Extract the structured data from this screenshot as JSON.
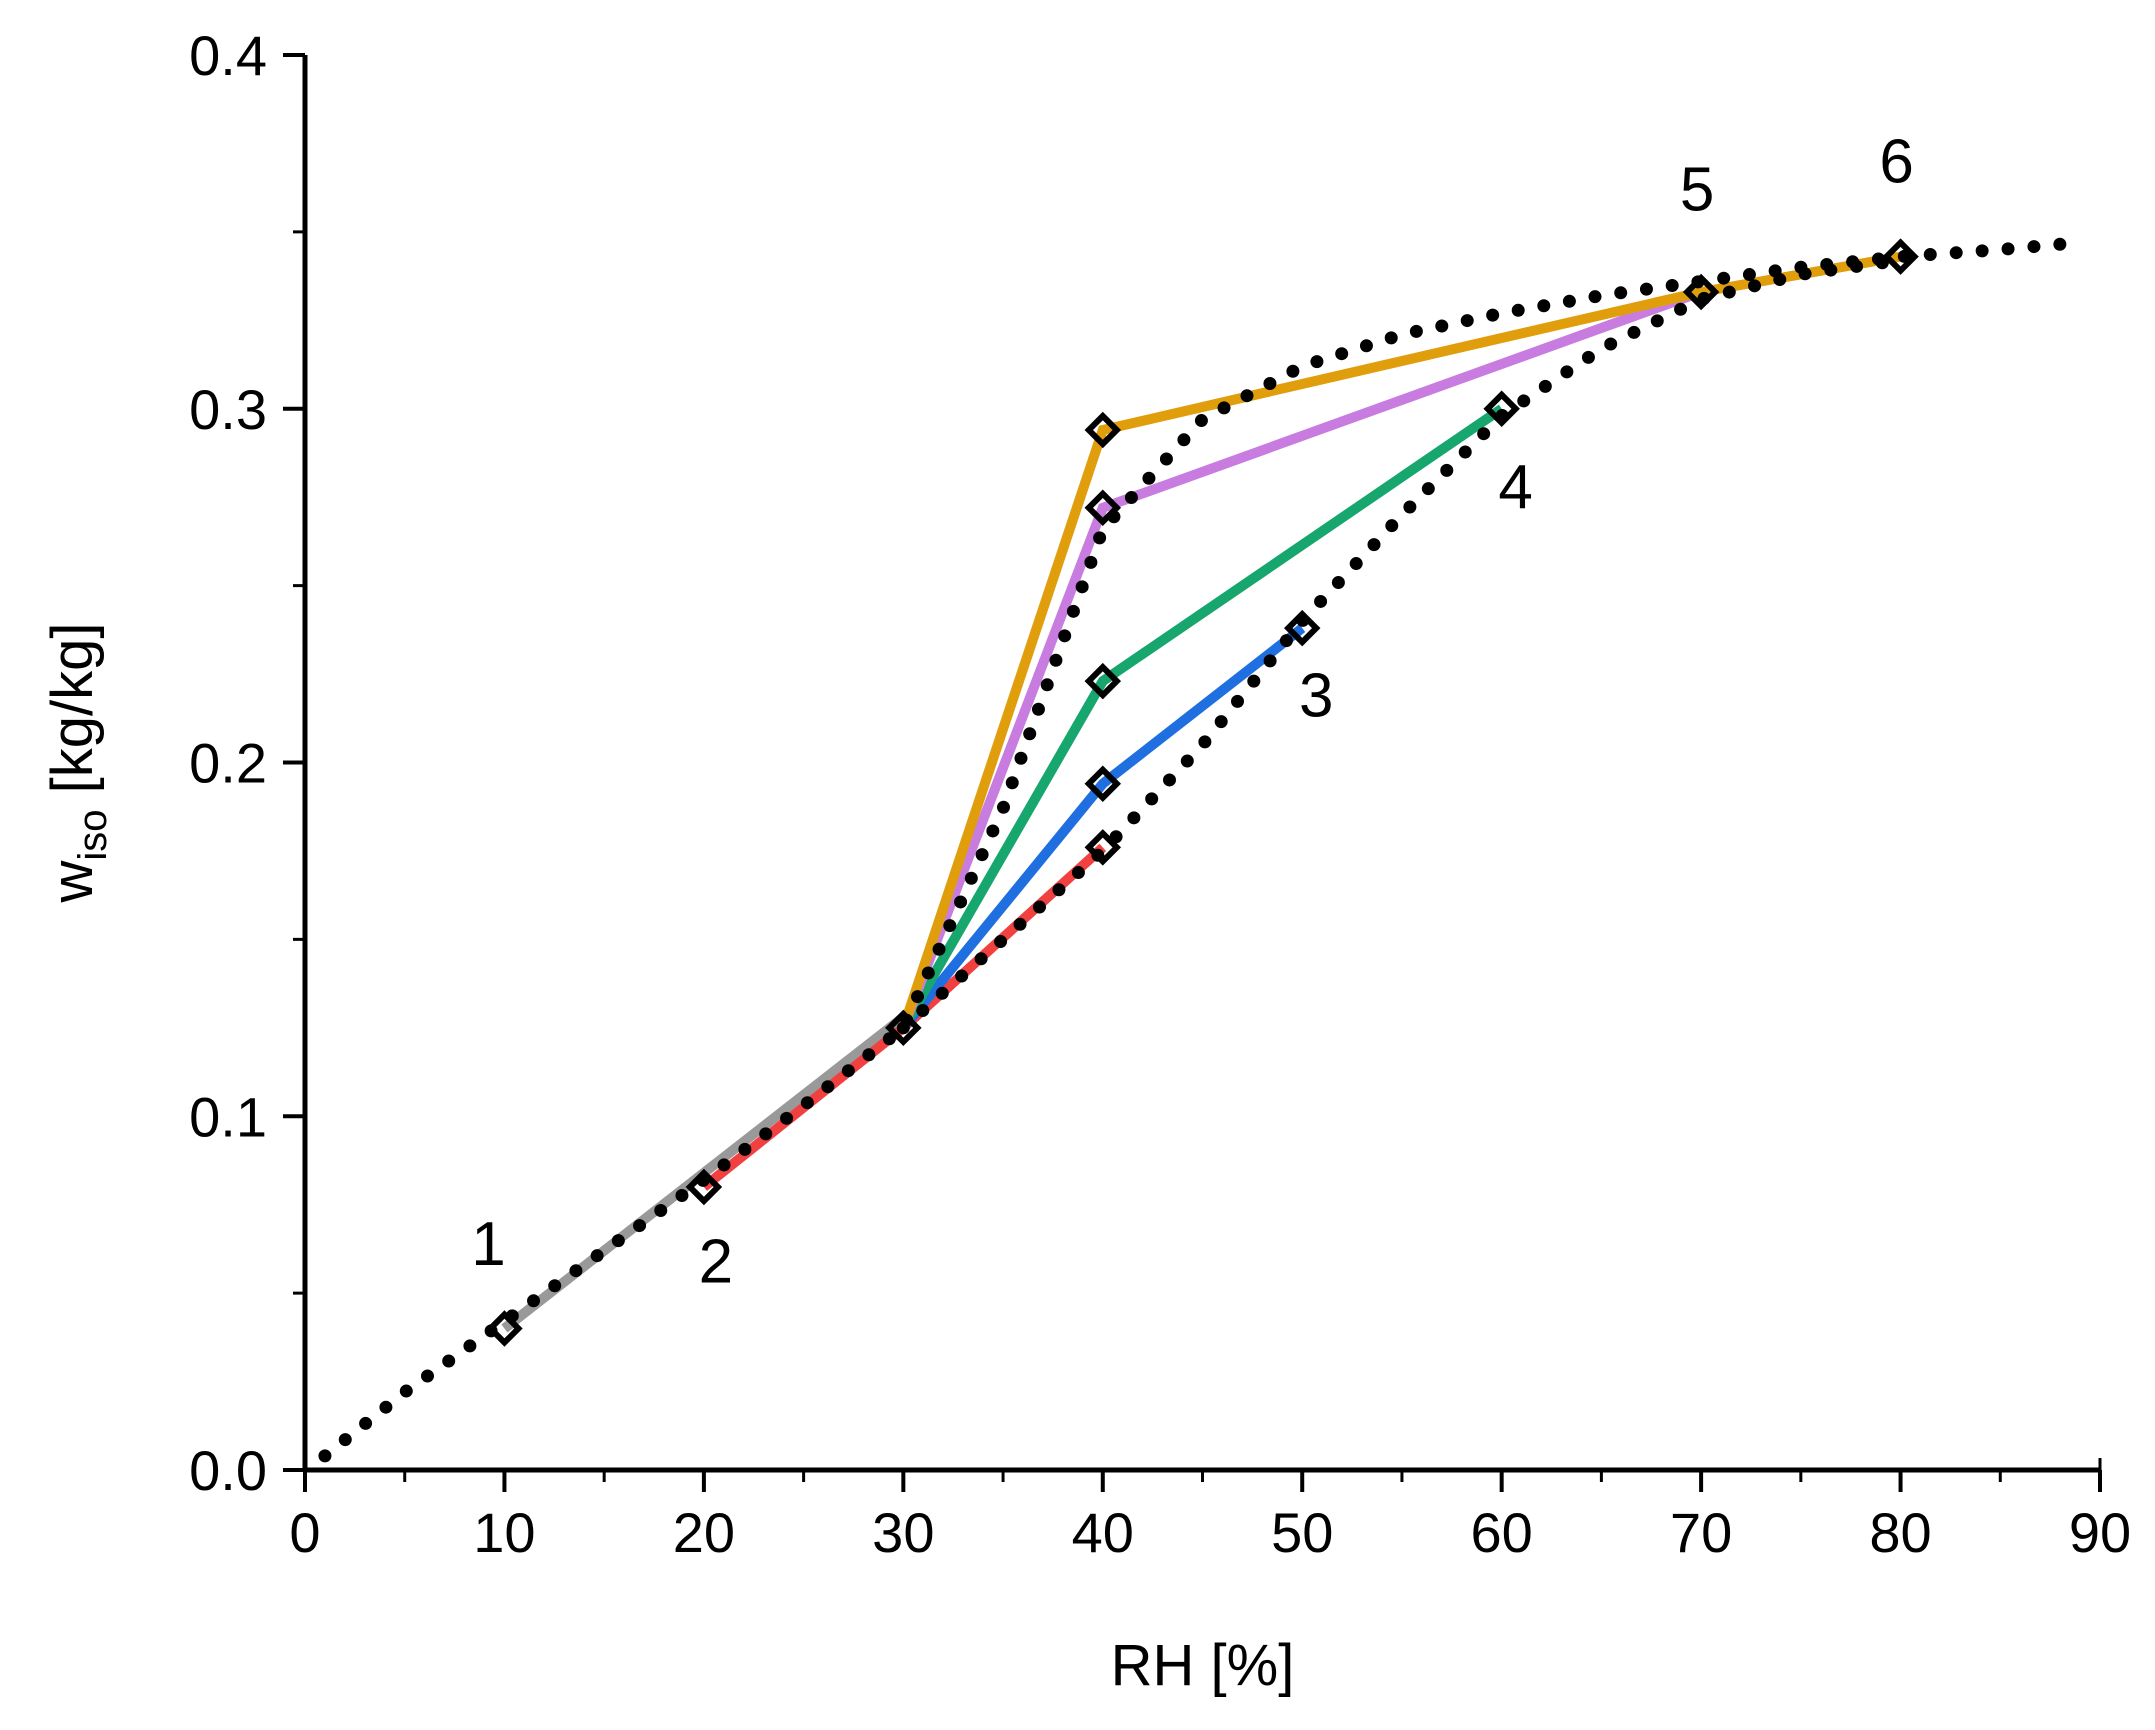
{
  "chart_data": {
    "type": "line",
    "title": "",
    "xlabel": "RH [%]",
    "ylabel": {
      "main": "w",
      "sub": "iso",
      "unit": " [kg/kg]"
    },
    "xlim": [
      0,
      90
    ],
    "ylim": [
      0,
      0.4
    ],
    "x_ticks": [
      {
        "value": 0,
        "label": "0"
      },
      {
        "value": 10,
        "label": "10"
      },
      {
        "value": 20,
        "label": "20"
      },
      {
        "value": 30,
        "label": "30"
      },
      {
        "value": 40,
        "label": "40"
      },
      {
        "value": 50,
        "label": "50"
      },
      {
        "value": 60,
        "label": "60"
      },
      {
        "value": 70,
        "label": "70"
      },
      {
        "value": 80,
        "label": "80"
      },
      {
        "value": 90,
        "label": "90"
      }
    ],
    "y_ticks": [
      {
        "value": 0.0,
        "label": "0.0"
      },
      {
        "value": 0.1,
        "label": "0.1"
      },
      {
        "value": 0.2,
        "label": "0.2"
      },
      {
        "value": 0.3,
        "label": "0.3"
      },
      {
        "value": 0.4,
        "label": "0.4"
      }
    ],
    "x_minor_step": 5,
    "y_minor_step": 0.05,
    "grid": false,
    "legend": "none",
    "series": [
      {
        "name": "1",
        "color": "#999999",
        "x": [
          10,
          30
        ],
        "y": [
          0.04,
          0.128
        ]
      },
      {
        "name": "2",
        "color": "#f04040",
        "x": [
          20,
          30,
          40
        ],
        "y": [
          0.08,
          0.125,
          0.176
        ]
      },
      {
        "name": "3",
        "color": "#1f6fe0",
        "x": [
          30,
          40,
          50
        ],
        "y": [
          0.125,
          0.194,
          0.238
        ]
      },
      {
        "name": "4",
        "color": "#16a66e",
        "x": [
          30,
          40,
          60
        ],
        "y": [
          0.125,
          0.223,
          0.3
        ]
      },
      {
        "name": "5",
        "color": "#c87ce0",
        "x": [
          30,
          40,
          70
        ],
        "y": [
          0.125,
          0.272,
          0.333
        ]
      },
      {
        "name": "6",
        "color": "#e19e0c",
        "x": [
          30,
          40,
          70,
          80
        ],
        "y": [
          0.125,
          0.294,
          0.333,
          0.343
        ]
      }
    ],
    "markers": [
      {
        "x": 10,
        "y": 0.04
      },
      {
        "x": 20,
        "y": 0.08
      },
      {
        "x": 30,
        "y": 0.125
      },
      {
        "x": 40,
        "y": 0.176
      },
      {
        "x": 40,
        "y": 0.194
      },
      {
        "x": 40,
        "y": 0.223
      },
      {
        "x": 40,
        "y": 0.272
      },
      {
        "x": 40,
        "y": 0.294
      },
      {
        "x": 50,
        "y": 0.238
      },
      {
        "x": 60,
        "y": 0.3
      },
      {
        "x": 70,
        "y": 0.333
      },
      {
        "x": 80,
        "y": 0.343
      }
    ],
    "dotted_curves": [
      {
        "name": "sorption-isotherm",
        "color": "#000000",
        "x": [
          1,
          5,
          10,
          15,
          20,
          25,
          30,
          35,
          40,
          45,
          50,
          55,
          60,
          65,
          70,
          75,
          80,
          85,
          89
        ],
        "y": [
          0.004,
          0.022,
          0.042,
          0.062,
          0.082,
          0.103,
          0.125,
          0.187,
          0.266,
          0.297,
          0.312,
          0.321,
          0.327,
          0.332,
          0.336,
          0.34,
          0.343,
          0.345,
          0.347
        ]
      },
      {
        "name": "desorption-isotherm",
        "color": "#000000",
        "x": [
          30,
          35,
          40,
          45,
          50,
          55,
          60,
          65,
          70,
          75,
          80
        ],
        "y": [
          0.125,
          0.15,
          0.175,
          0.205,
          0.24,
          0.27,
          0.298,
          0.317,
          0.331,
          0.338,
          0.342
        ]
      }
    ],
    "annotations": [
      {
        "text": "1",
        "x": 9.2,
        "y": 0.058
      },
      {
        "text": "2",
        "x": 20.6,
        "y": 0.053
      },
      {
        "text": "3",
        "x": 50.7,
        "y": 0.213
      },
      {
        "text": "4",
        "x": 60.7,
        "y": 0.272
      },
      {
        "text": "5",
        "x": 69.8,
        "y": 0.356
      },
      {
        "text": "6",
        "x": 79.8,
        "y": 0.364
      }
    ]
  }
}
